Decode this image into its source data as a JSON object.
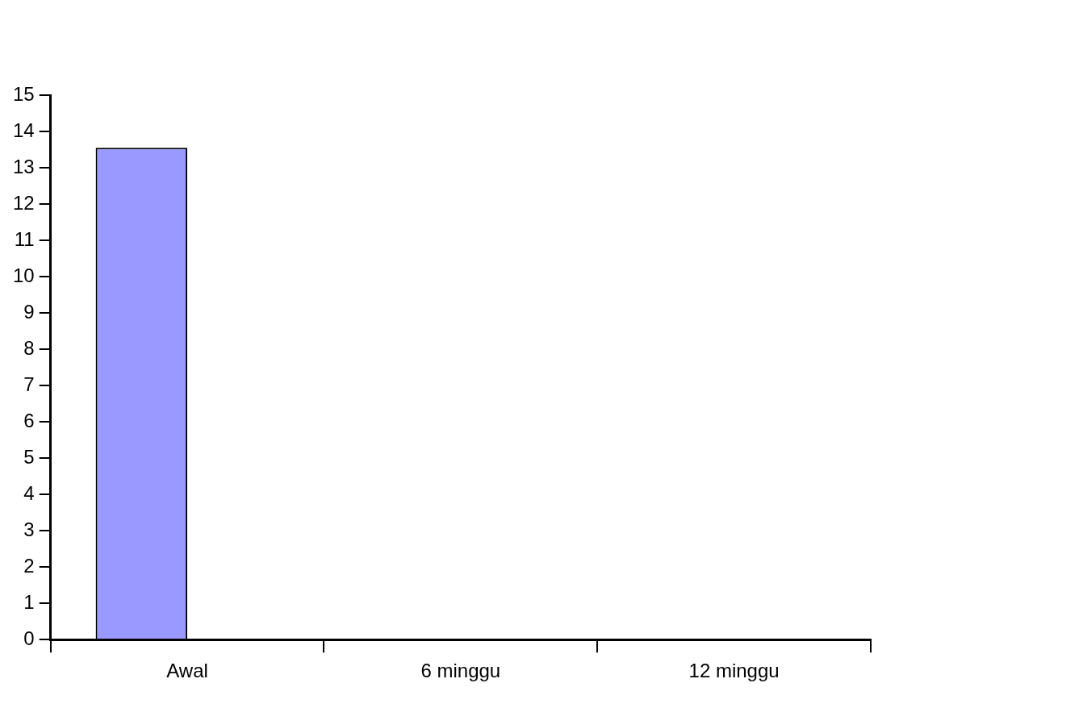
{
  "chart_data": {
    "type": "bar",
    "categories": [
      "Awal",
      "6 minggu",
      "12 minggu"
    ],
    "series": [
      {
        "color": "#9999ff",
        "values": [
          13.55,
          null,
          null
        ]
      },
      {
        "color": "#ff0000",
        "values": [
          null,
          null,
          null
        ]
      }
    ],
    "ylim": [
      0,
      15
    ],
    "yticks": [
      0,
      1,
      2,
      3,
      4,
      5,
      6,
      7,
      8,
      9,
      10,
      11,
      12,
      13,
      14,
      15
    ],
    "grid": false,
    "legend": false
  }
}
